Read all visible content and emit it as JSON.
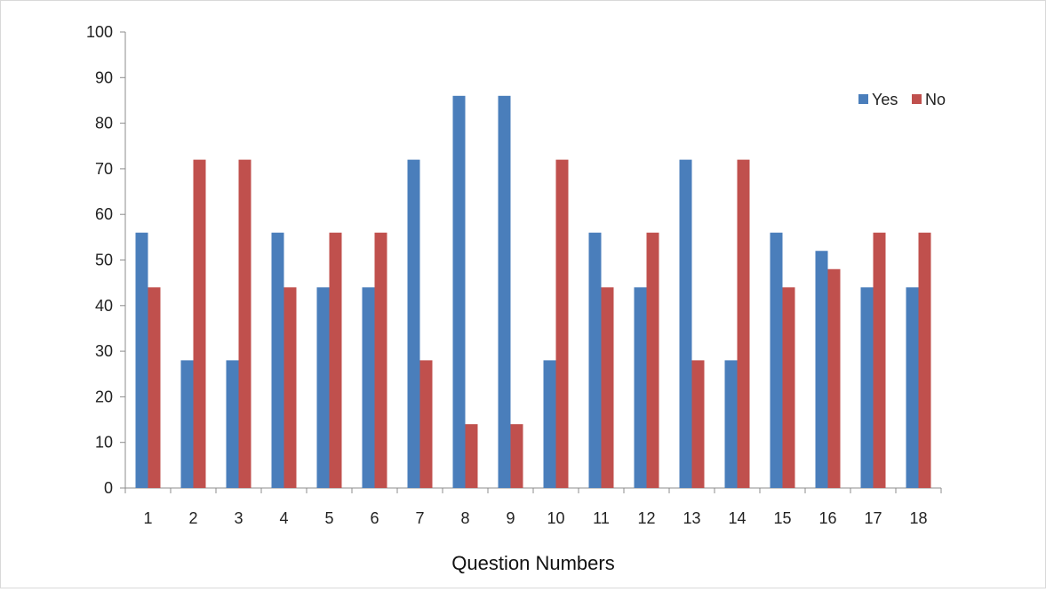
{
  "chart_data": {
    "type": "bar",
    "title": "",
    "xlabel": "Question Numbers",
    "ylabel": "",
    "ylim": [
      0,
      100
    ],
    "yticks": [
      0,
      10,
      20,
      30,
      40,
      50,
      60,
      70,
      80,
      90,
      100
    ],
    "categories": [
      "1",
      "2",
      "3",
      "4",
      "5",
      "6",
      "7",
      "8",
      "9",
      "10",
      "11",
      "12",
      "13",
      "14",
      "15",
      "16",
      "17",
      "18"
    ],
    "series": [
      {
        "name": "Yes",
        "color": "#4a7ebb",
        "values": [
          56,
          28,
          28,
          56,
          44,
          44,
          72,
          86,
          86,
          28,
          56,
          44,
          72,
          28,
          56,
          52,
          44,
          44
        ]
      },
      {
        "name": "No",
        "color": "#c0504d",
        "values": [
          44,
          72,
          72,
          44,
          56,
          56,
          28,
          14,
          14,
          72,
          44,
          56,
          28,
          72,
          44,
          48,
          56,
          56
        ]
      }
    ],
    "grid": false,
    "legend": "top-right"
  }
}
